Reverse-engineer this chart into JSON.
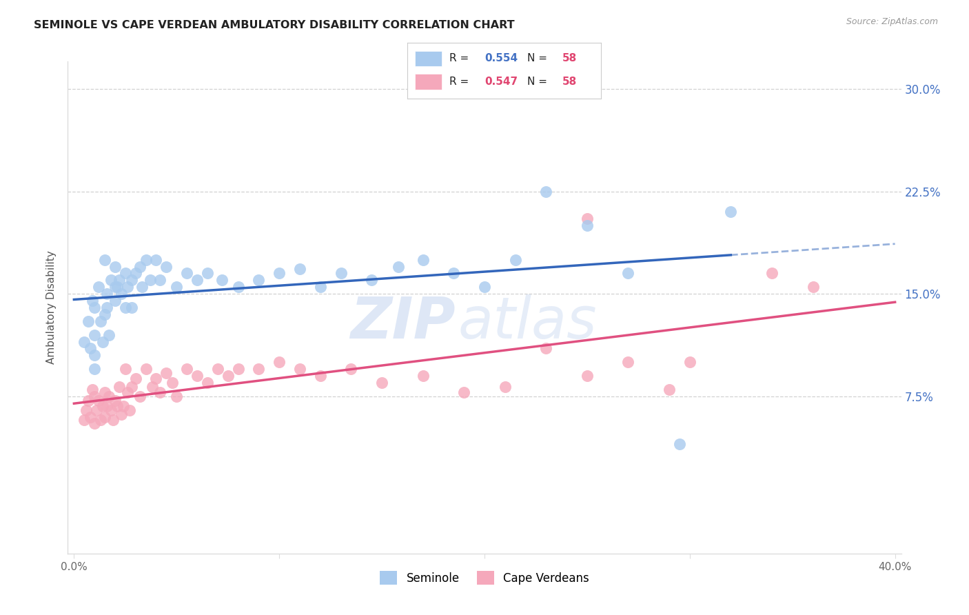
{
  "title": "SEMINOLE VS CAPE VERDEAN AMBULATORY DISABILITY CORRELATION CHART",
  "source": "Source: ZipAtlas.com",
  "ylabel": "Ambulatory Disability",
  "xlim": [
    0.0,
    0.4
  ],
  "ylim": [
    -0.04,
    0.32
  ],
  "yticks": [
    0.075,
    0.15,
    0.225,
    0.3
  ],
  "ytick_labels": [
    "7.5%",
    "15.0%",
    "22.5%",
    "30.0%"
  ],
  "seminole_color": "#A8CAEE",
  "cape_color": "#F5A8BB",
  "seminole_line_color": "#3366BB",
  "cape_line_color": "#E05080",
  "background_color": "#ffffff",
  "grid_color": "#cccccc",
  "R_seminole": "0.554",
  "R_cape": "0.547",
  "N": "58",
  "seminole_label": "Seminole",
  "cape_label": "Cape Verdeans",
  "watermark_zip": "ZIP",
  "watermark_atlas": "atlas",
  "seminole_x": [
    0.005,
    0.007,
    0.008,
    0.009,
    0.01,
    0.01,
    0.01,
    0.01,
    0.012,
    0.013,
    0.014,
    0.015,
    0.015,
    0.016,
    0.016,
    0.017,
    0.018,
    0.02,
    0.02,
    0.02,
    0.021,
    0.022,
    0.023,
    0.025,
    0.025,
    0.026,
    0.028,
    0.028,
    0.03,
    0.032,
    0.033,
    0.035,
    0.037,
    0.04,
    0.042,
    0.045,
    0.05,
    0.055,
    0.06,
    0.065,
    0.072,
    0.08,
    0.09,
    0.1,
    0.11,
    0.12,
    0.13,
    0.145,
    0.158,
    0.17,
    0.185,
    0.2,
    0.215,
    0.23,
    0.25,
    0.27,
    0.295,
    0.32
  ],
  "seminole_y": [
    0.115,
    0.13,
    0.11,
    0.145,
    0.12,
    0.105,
    0.095,
    0.14,
    0.155,
    0.13,
    0.115,
    0.175,
    0.135,
    0.15,
    0.14,
    0.12,
    0.16,
    0.17,
    0.145,
    0.155,
    0.155,
    0.16,
    0.15,
    0.165,
    0.14,
    0.155,
    0.16,
    0.14,
    0.165,
    0.17,
    0.155,
    0.175,
    0.16,
    0.175,
    0.16,
    0.17,
    0.155,
    0.165,
    0.16,
    0.165,
    0.16,
    0.155,
    0.16,
    0.165,
    0.168,
    0.155,
    0.165,
    0.16,
    0.17,
    0.175,
    0.165,
    0.155,
    0.175,
    0.225,
    0.2,
    0.165,
    0.04,
    0.21
  ],
  "cape_x": [
    0.005,
    0.006,
    0.007,
    0.008,
    0.009,
    0.01,
    0.01,
    0.011,
    0.012,
    0.013,
    0.014,
    0.015,
    0.015,
    0.016,
    0.017,
    0.018,
    0.019,
    0.02,
    0.021,
    0.022,
    0.023,
    0.024,
    0.025,
    0.026,
    0.027,
    0.028,
    0.03,
    0.032,
    0.035,
    0.038,
    0.04,
    0.042,
    0.045,
    0.048,
    0.05,
    0.055,
    0.06,
    0.065,
    0.07,
    0.075,
    0.08,
    0.09,
    0.1,
    0.11,
    0.12,
    0.135,
    0.15,
    0.17,
    0.19,
    0.21,
    0.23,
    0.25,
    0.25,
    0.27,
    0.29,
    0.3,
    0.34,
    0.36
  ],
  "cape_y": [
    0.058,
    0.065,
    0.072,
    0.06,
    0.08,
    0.055,
    0.075,
    0.065,
    0.072,
    0.058,
    0.068,
    0.078,
    0.06,
    0.068,
    0.075,
    0.065,
    0.058,
    0.072,
    0.068,
    0.082,
    0.062,
    0.068,
    0.095,
    0.078,
    0.065,
    0.082,
    0.088,
    0.075,
    0.095,
    0.082,
    0.088,
    0.078,
    0.092,
    0.085,
    0.075,
    0.095,
    0.09,
    0.085,
    0.095,
    0.09,
    0.095,
    0.095,
    0.1,
    0.095,
    0.09,
    0.095,
    0.085,
    0.09,
    0.078,
    0.082,
    0.11,
    0.205,
    0.09,
    0.1,
    0.08,
    0.1,
    0.165,
    0.155
  ]
}
